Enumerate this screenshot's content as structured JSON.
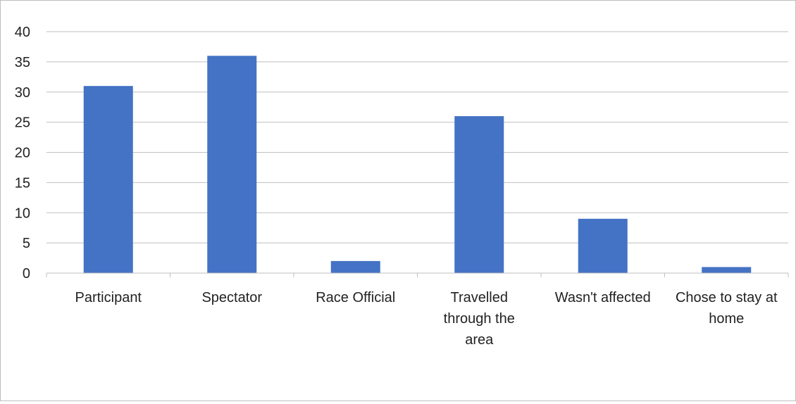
{
  "chart_data": {
    "type": "bar",
    "categories": [
      [
        "Participant"
      ],
      [
        "Spectator"
      ],
      [
        "Race Official"
      ],
      [
        "Travelled",
        "through the",
        "area"
      ],
      [
        "Wasn't affected"
      ],
      [
        "Chose to stay at",
        "home"
      ]
    ],
    "values": [
      31,
      36,
      2,
      26,
      9,
      1
    ],
    "yticks": [
      "0",
      "5",
      "10",
      "15",
      "20",
      "25",
      "30",
      "35",
      "40"
    ],
    "ylim": [
      0,
      40
    ],
    "grid": true,
    "legend": "none",
    "colors": {
      "bar": "#4472C4",
      "grid": "#BFBFBF",
      "axis": "#BFBFBF"
    }
  }
}
